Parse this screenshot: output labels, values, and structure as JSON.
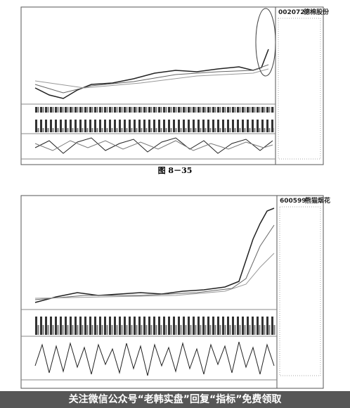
{
  "figures": [
    {
      "code": "002072",
      "name": "德棉股份"
    },
    {
      "code": "600599",
      "name": "熊猫烟花"
    }
  ],
  "caption": "图 8－35",
  "footer": {
    "text": "关注微信公众号“老韩实盘”回复“指标”免费领取"
  }
}
